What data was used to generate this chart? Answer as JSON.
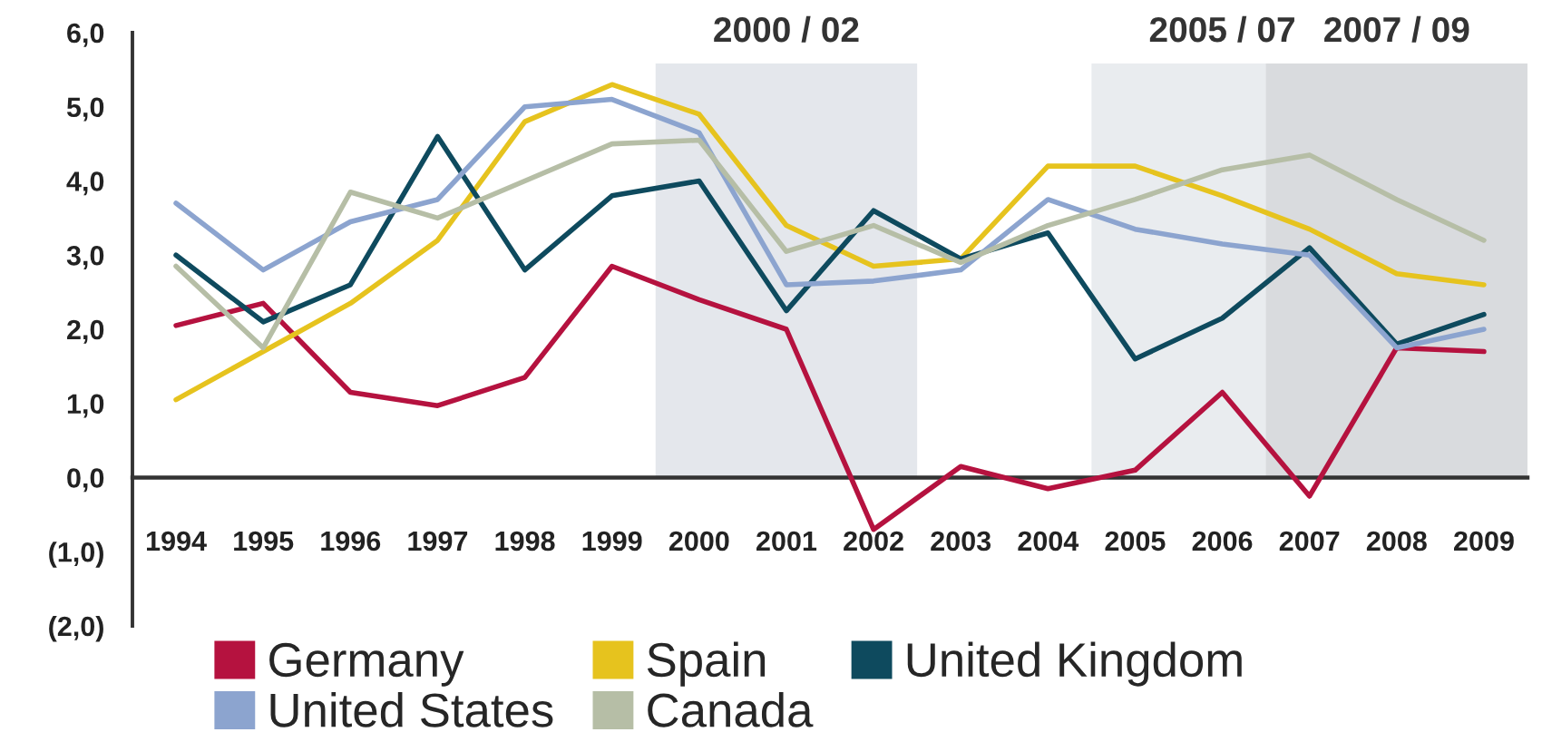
{
  "chart_data": {
    "type": "line",
    "categories": [
      "1994",
      "1995",
      "1996",
      "1997",
      "1998",
      "1999",
      "2000",
      "2001",
      "2002",
      "2003",
      "2004",
      "2005",
      "2006",
      "2007",
      "2008",
      "2009"
    ],
    "series": [
      {
        "name": "Germany",
        "color": "#b5123f",
        "values": [
          2.05,
          2.35,
          1.15,
          0.97,
          1.35,
          2.85,
          2.4,
          2.0,
          -0.7,
          0.15,
          -0.15,
          0.1,
          1.15,
          -0.25,
          1.75,
          1.7
        ]
      },
      {
        "name": "Spain",
        "color": "#e6c31e",
        "values": [
          1.05,
          1.7,
          2.35,
          3.2,
          4.8,
          5.3,
          4.9,
          3.4,
          2.85,
          2.95,
          4.2,
          4.2,
          3.8,
          3.35,
          2.75,
          2.6
        ]
      },
      {
        "name": "United Kingdom",
        "color": "#0e4a5e",
        "values": [
          3.0,
          2.1,
          2.6,
          4.6,
          2.8,
          3.8,
          4.0,
          2.25,
          3.6,
          2.95,
          3.3,
          1.6,
          2.15,
          3.1,
          1.8,
          2.2
        ]
      },
      {
        "name": "United States",
        "color": "#8ca4cf",
        "values": [
          3.7,
          2.8,
          3.45,
          3.75,
          5.0,
          5.1,
          4.65,
          2.6,
          2.65,
          2.8,
          3.75,
          3.35,
          3.15,
          3.0,
          1.75,
          2.0
        ]
      },
      {
        "name": "Canada",
        "color": "#b6bea6",
        "values": [
          2.85,
          1.75,
          3.85,
          3.5,
          4.0,
          4.5,
          4.55,
          3.05,
          3.4,
          2.9,
          3.4,
          3.75,
          4.15,
          4.35,
          3.75,
          3.2
        ]
      }
    ],
    "ylim": [
      -2,
      6
    ],
    "yticks": [
      {
        "value": -2,
        "label": "(2,0)"
      },
      {
        "value": -1,
        "label": "(1,0)"
      },
      {
        "value": 0,
        "label": "0,0"
      },
      {
        "value": 1,
        "label": "1,0"
      },
      {
        "value": 2,
        "label": "2,0"
      },
      {
        "value": 3,
        "label": "3,0"
      },
      {
        "value": 4,
        "label": "4,0"
      },
      {
        "value": 5,
        "label": "5,0"
      },
      {
        "value": 6,
        "label": "6,0"
      }
    ],
    "bands": [
      {
        "axis": "x",
        "from": "2000",
        "to": "2002",
        "label": "2000 / 02",
        "color": "#e4e7ec"
      },
      {
        "axis": "x",
        "from": "2005",
        "to": "2007",
        "label": "2005 / 07",
        "color": "#e9ecef"
      },
      {
        "axis": "x",
        "from": "2007",
        "to": "2009",
        "label": "2007 / 09",
        "color": "#d9dbde"
      }
    ],
    "legend": "bottom",
    "line_style": "solid"
  }
}
